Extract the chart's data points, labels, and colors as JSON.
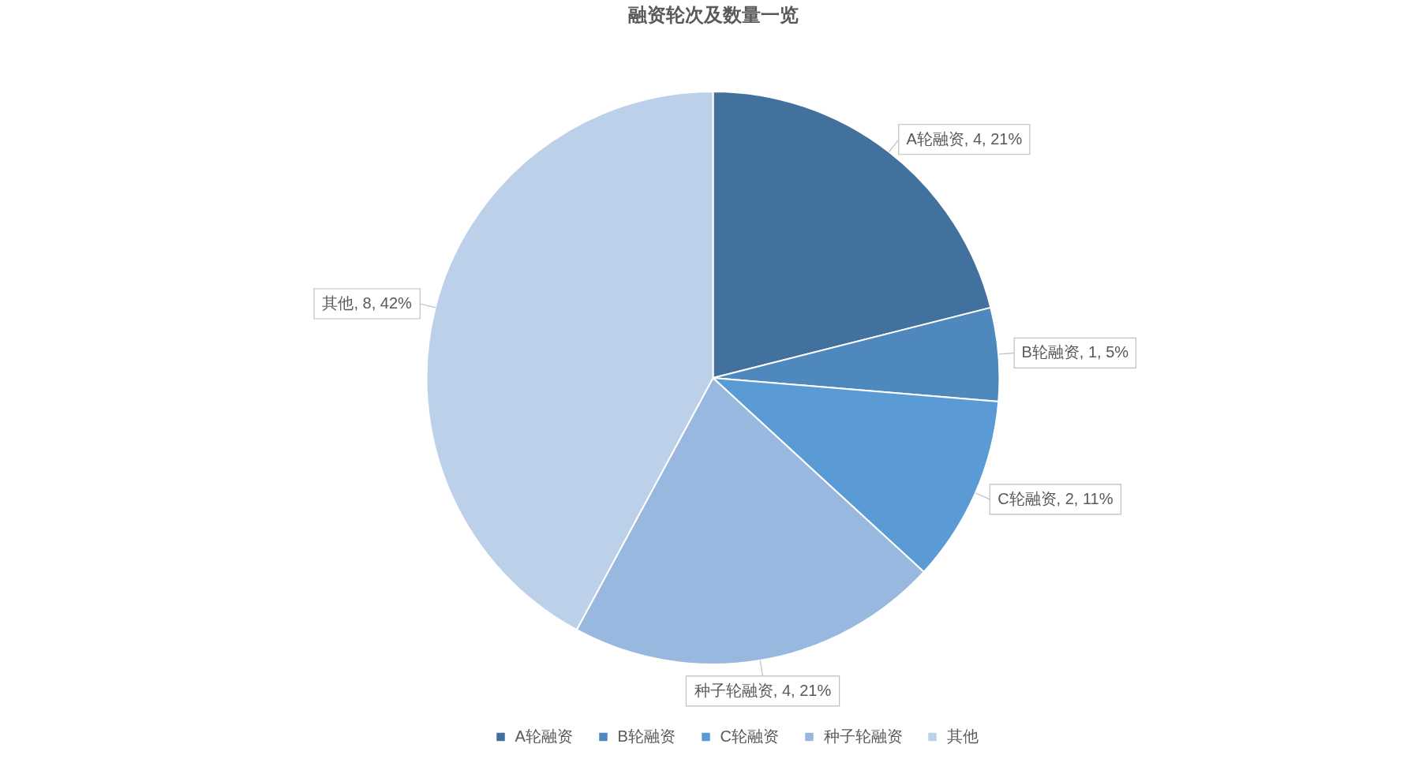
{
  "chart_data": {
    "type": "pie",
    "title": "融资轮次及数量一览",
    "categories": [
      "A轮融资",
      "B轮融资",
      "C轮融资",
      "种子轮融资",
      "其他"
    ],
    "values": [
      4,
      1,
      2,
      4,
      8
    ],
    "colors": [
      "#41719c",
      "#4e88bc",
      "#5b9bd5",
      "#98b8e0",
      "#bdd0ea"
    ],
    "value_labels": [
      "A轮融资, 4, 21%",
      "B轮融资, 1, 5%",
      "C轮融资, 2, 11%",
      "种子轮融资, 4, 21%",
      "其他, 8, 42%"
    ],
    "legend": "bottom"
  }
}
